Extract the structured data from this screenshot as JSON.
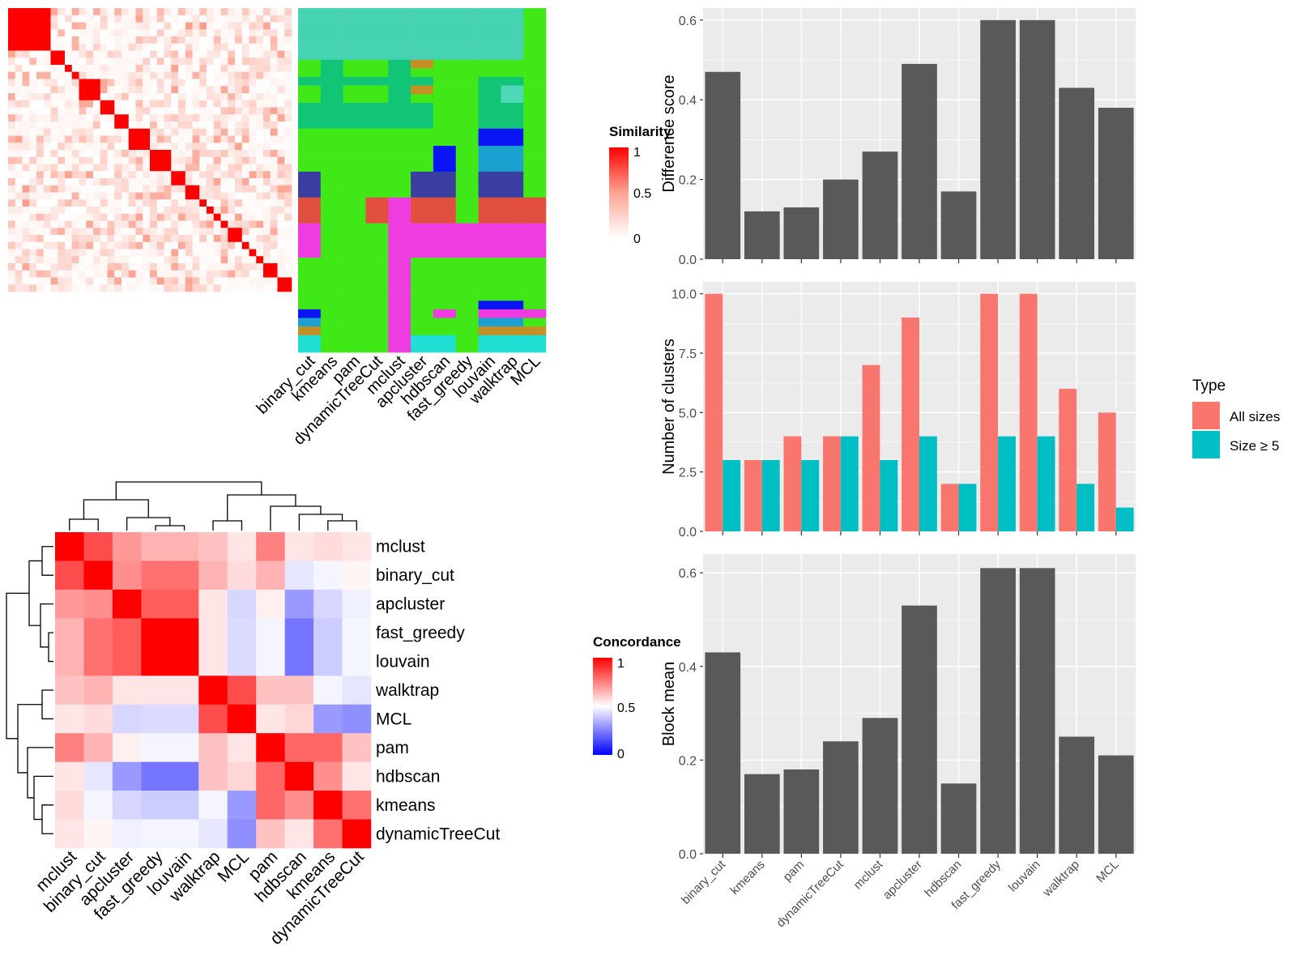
{
  "methods": [
    "binary_cut",
    "kmeans",
    "pam",
    "dynamicTreeCut",
    "mclust",
    "apcluster",
    "hdbscan",
    "fast_greedy",
    "louvain",
    "walktrap",
    "MCL"
  ],
  "heatmap_methods": [
    "mclust",
    "binary_cut",
    "apcluster",
    "fast_greedy",
    "louvain",
    "walktrap",
    "MCL",
    "pam",
    "hdbscan",
    "kmeans",
    "dynamicTreeCut"
  ],
  "similarity_legend": {
    "title": "Similarity",
    "ticks": [
      "1",
      "0.5",
      "0"
    ]
  },
  "concordance_legend": {
    "title": "Concordance",
    "ticks": [
      "1",
      "0.5",
      "0"
    ]
  },
  "colors": {
    "panel_bg": "#ebebeb",
    "gridline": "#ffffff",
    "bar_dark": "#595959",
    "all_sizes": "#f8766d",
    "size_ge5": "#00bfc4",
    "heat_high": "#ff0000",
    "heat_low_blue": "#0000ff",
    "heat_mid": "#ffffff"
  },
  "chart_data": [
    {
      "type": "heatmap",
      "title": "",
      "description_legend": "Similarity",
      "size": 40,
      "block_sizes": [
        6,
        2,
        1,
        1,
        3,
        2,
        2,
        3,
        3,
        2,
        2,
        1,
        1,
        1,
        1,
        2,
        1,
        1,
        1,
        2,
        2
      ],
      "value_range": [
        0,
        1
      ]
    },
    {
      "type": "table",
      "title": "",
      "columns": [
        "binary_cut",
        "kmeans",
        "pam",
        "dynamicTreeCut",
        "mclust",
        "apcluster",
        "hdbscan",
        "fast_greedy",
        "louvain",
        "walktrap",
        "MCL"
      ],
      "rows": 40,
      "note": "Cluster label assignments per term for each method (categorical colors)"
    },
    {
      "type": "bar",
      "categories": [
        "binary_cut",
        "kmeans",
        "pam",
        "dynamicTreeCut",
        "mclust",
        "apcluster",
        "hdbscan",
        "fast_greedy",
        "louvain",
        "walktrap",
        "MCL"
      ],
      "values": [
        0.47,
        0.12,
        0.13,
        0.2,
        0.27,
        0.49,
        0.17,
        0.6,
        0.6,
        0.43,
        0.38
      ],
      "xlabel": "",
      "ylabel": "Difference score",
      "ylim": [
        0,
        0.63
      ],
      "yticks": [
        "0.0",
        "0.2",
        "0.4",
        "0.6"
      ]
    },
    {
      "type": "bar",
      "categories": [
        "binary_cut",
        "kmeans",
        "pam",
        "dynamicTreeCut",
        "mclust",
        "apcluster",
        "hdbscan",
        "fast_greedy",
        "louvain",
        "walktrap",
        "MCL"
      ],
      "series": [
        {
          "name": "All sizes",
          "values": [
            10,
            3,
            4,
            4,
            7,
            9,
            2,
            10,
            10,
            6,
            5
          ]
        },
        {
          "name": "Size ≥ 5",
          "values": [
            3,
            3,
            3,
            4,
            3,
            4,
            2,
            4,
            4,
            2,
            1
          ]
        }
      ],
      "xlabel": "",
      "ylabel": "Number of clusters",
      "ylim": [
        0,
        10.5
      ],
      "yticks": [
        "0.0",
        "2.5",
        "5.0",
        "7.5",
        "10.0"
      ],
      "legend": {
        "title": "Type",
        "position": "right"
      }
    },
    {
      "type": "bar",
      "categories": [
        "binary_cut",
        "kmeans",
        "pam",
        "dynamicTreeCut",
        "mclust",
        "apcluster",
        "hdbscan",
        "fast_greedy",
        "louvain",
        "walktrap",
        "MCL"
      ],
      "values": [
        0.43,
        0.17,
        0.18,
        0.24,
        0.29,
        0.53,
        0.15,
        0.61,
        0.61,
        0.25,
        0.21
      ],
      "xlabel": "",
      "ylabel": "Block mean",
      "ylim": [
        0,
        0.64
      ],
      "yticks": [
        "0.0",
        "0.2",
        "0.4",
        "0.6"
      ]
    },
    {
      "type": "heatmap",
      "title": "",
      "description_legend": "Concordance",
      "rows": [
        "mclust",
        "binary_cut",
        "apcluster",
        "fast_greedy",
        "louvain",
        "walktrap",
        "MCL",
        "pam",
        "hdbscan",
        "kmeans",
        "dynamicTreeCut"
      ],
      "columns": [
        "mclust",
        "binary_cut",
        "apcluster",
        "fast_greedy",
        "louvain",
        "walktrap",
        "MCL",
        "pam",
        "hdbscan",
        "kmeans",
        "dynamicTreeCut"
      ],
      "values": [
        [
          1.0,
          0.85,
          0.7,
          0.65,
          0.65,
          0.62,
          0.55,
          0.75,
          0.55,
          0.57,
          0.55
        ],
        [
          0.85,
          1.0,
          0.72,
          0.78,
          0.78,
          0.65,
          0.57,
          0.65,
          0.45,
          0.48,
          0.52
        ],
        [
          0.7,
          0.72,
          1.0,
          0.82,
          0.82,
          0.55,
          0.42,
          0.53,
          0.3,
          0.42,
          0.47
        ],
        [
          0.65,
          0.78,
          0.82,
          1.0,
          1.0,
          0.55,
          0.43,
          0.48,
          0.23,
          0.4,
          0.48
        ],
        [
          0.65,
          0.78,
          0.82,
          1.0,
          1.0,
          0.55,
          0.43,
          0.48,
          0.23,
          0.4,
          0.48
        ],
        [
          0.62,
          0.65,
          0.55,
          0.55,
          0.55,
          1.0,
          0.85,
          0.62,
          0.62,
          0.48,
          0.45
        ],
        [
          0.55,
          0.57,
          0.42,
          0.43,
          0.43,
          0.85,
          1.0,
          0.55,
          0.58,
          0.3,
          0.28
        ],
        [
          0.75,
          0.65,
          0.53,
          0.48,
          0.48,
          0.62,
          0.55,
          1.0,
          0.8,
          0.8,
          0.62
        ],
        [
          0.55,
          0.45,
          0.3,
          0.23,
          0.23,
          0.62,
          0.58,
          0.8,
          1.0,
          0.72,
          0.55
        ],
        [
          0.57,
          0.48,
          0.42,
          0.4,
          0.4,
          0.48,
          0.3,
          0.8,
          0.72,
          1.0,
          0.78
        ],
        [
          0.55,
          0.52,
          0.47,
          0.48,
          0.48,
          0.45,
          0.28,
          0.62,
          0.55,
          0.78,
          1.0
        ]
      ],
      "value_range": [
        0,
        1
      ]
    }
  ]
}
